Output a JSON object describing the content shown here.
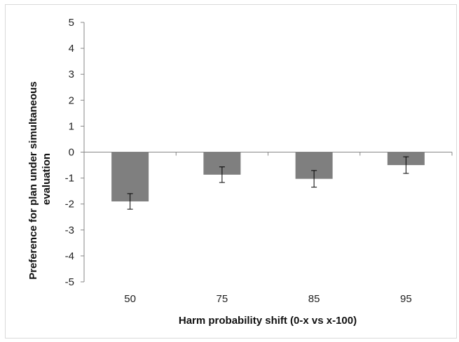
{
  "chart_data": {
    "type": "bar",
    "title": "",
    "xlabel": "Harm probability shift (0-x vs x-100)",
    "ylabel_lines": [
      "Preference for plan under simultaneous",
      "evaluation"
    ],
    "categories": [
      "50",
      "75",
      "85",
      "95"
    ],
    "series": [
      {
        "values": [
          -1.9,
          -0.87,
          -1.03,
          -0.5
        ],
        "error": [
          0.3,
          0.3,
          0.32,
          0.32
        ]
      }
    ],
    "ylim": [
      -5,
      5
    ],
    "yticks": [
      "5",
      "4",
      "3",
      "2",
      "1",
      "0",
      "-1",
      "-2",
      "-3",
      "-4",
      "-5"
    ],
    "grid": false,
    "legend": "none",
    "colors": {
      "bar": "#7f7f7f",
      "axis": "#878787",
      "error": "#000000"
    }
  }
}
